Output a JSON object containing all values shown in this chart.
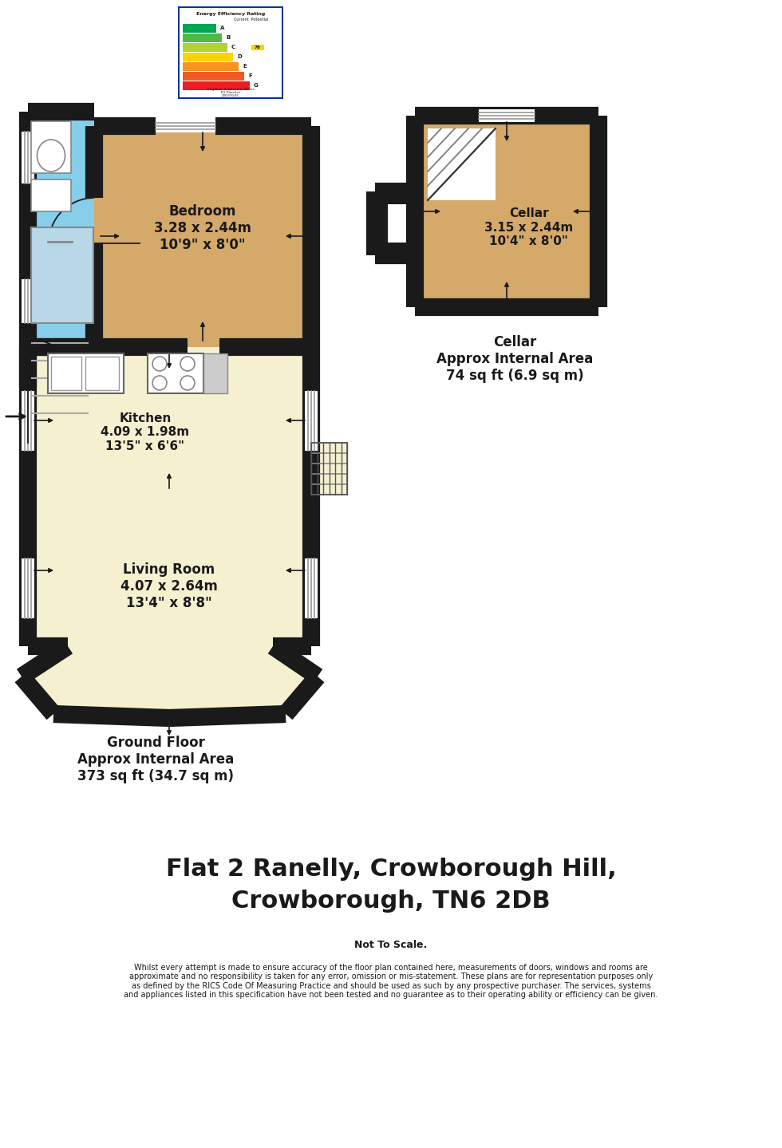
{
  "bg_color": "#ffffff",
  "wall_color": "#1a1a1a",
  "bedroom_color": "#d4a96a",
  "bathroom_color": "#87ceeb",
  "kitchen_color": "#f5f0d0",
  "living_color": "#f5f0d0",
  "cellar_color": "#d4a96a",
  "entry_color": "#c8986a",
  "title_line1": "Flat 2 Ranelly, Crowborough Hill,",
  "title_line2": "Crowborough, TN6 2DB",
  "subtitle": "Not To Scale.",
  "disclaimer": "Whilst every attempt is made to ensure accuracy of the floor plan contained here, measurements of doors, windows and rooms are\napproximate and no responsibility is taken for any error, omission or mis-statement. These plans are for representation purposes only\nas defined by the RICS Code Of Measuring Practice and should be used as such by any prospective purchaser. The services, systems\nand appliances listed in this specification have not been tested and no guarantee as to their operating ability or efficiency can be given.",
  "ground_floor_label": "Ground Floor\nApprox Internal Area\n373 sq ft (34.7 sq m)",
  "cellar_area_label": "Cellar\nApprox Internal Area\n74 sq ft (6.9 sq m)",
  "bedroom_label": "Bedroom\n3.28 x 2.44m\n10'9\" x 8'0\"",
  "kitchen_label": "Kitchen\n4.09 x 1.98m\n13'5\" x 6'6\"",
  "living_label": "Living Room\n4.07 x 2.64m\n13'4\" x 8'8\"",
  "cellar_room_label": "Cellar\n3.15 x 2.44m\n10'4\" x 8'0\"",
  "epc_labels": [
    "A",
    "B",
    "C",
    "D",
    "E",
    "F",
    "G"
  ],
  "epc_colors": [
    "#00a651",
    "#50b848",
    "#b2d234",
    "#ffd200",
    "#f7941d",
    "#f15a24",
    "#ed1c24"
  ],
  "BL": 35,
  "BT": 140,
  "BR": 390,
  "WW": 16,
  "BATH_R": 118,
  "BATH_B": 435,
  "BED_T": 158,
  "BED_B": 435,
  "KITCH_T": 435,
  "KITCH_B": 620,
  "LIVE_T": 620,
  "LIVE_B": 810,
  "BAY_B": 895,
  "CELL_L": 520,
  "CELL_T": 145,
  "CELL_R": 750,
  "CELL_B": 385,
  "NOTCH_L": 470,
  "NOTCH_T": 240,
  "NOTCH_B": 320
}
